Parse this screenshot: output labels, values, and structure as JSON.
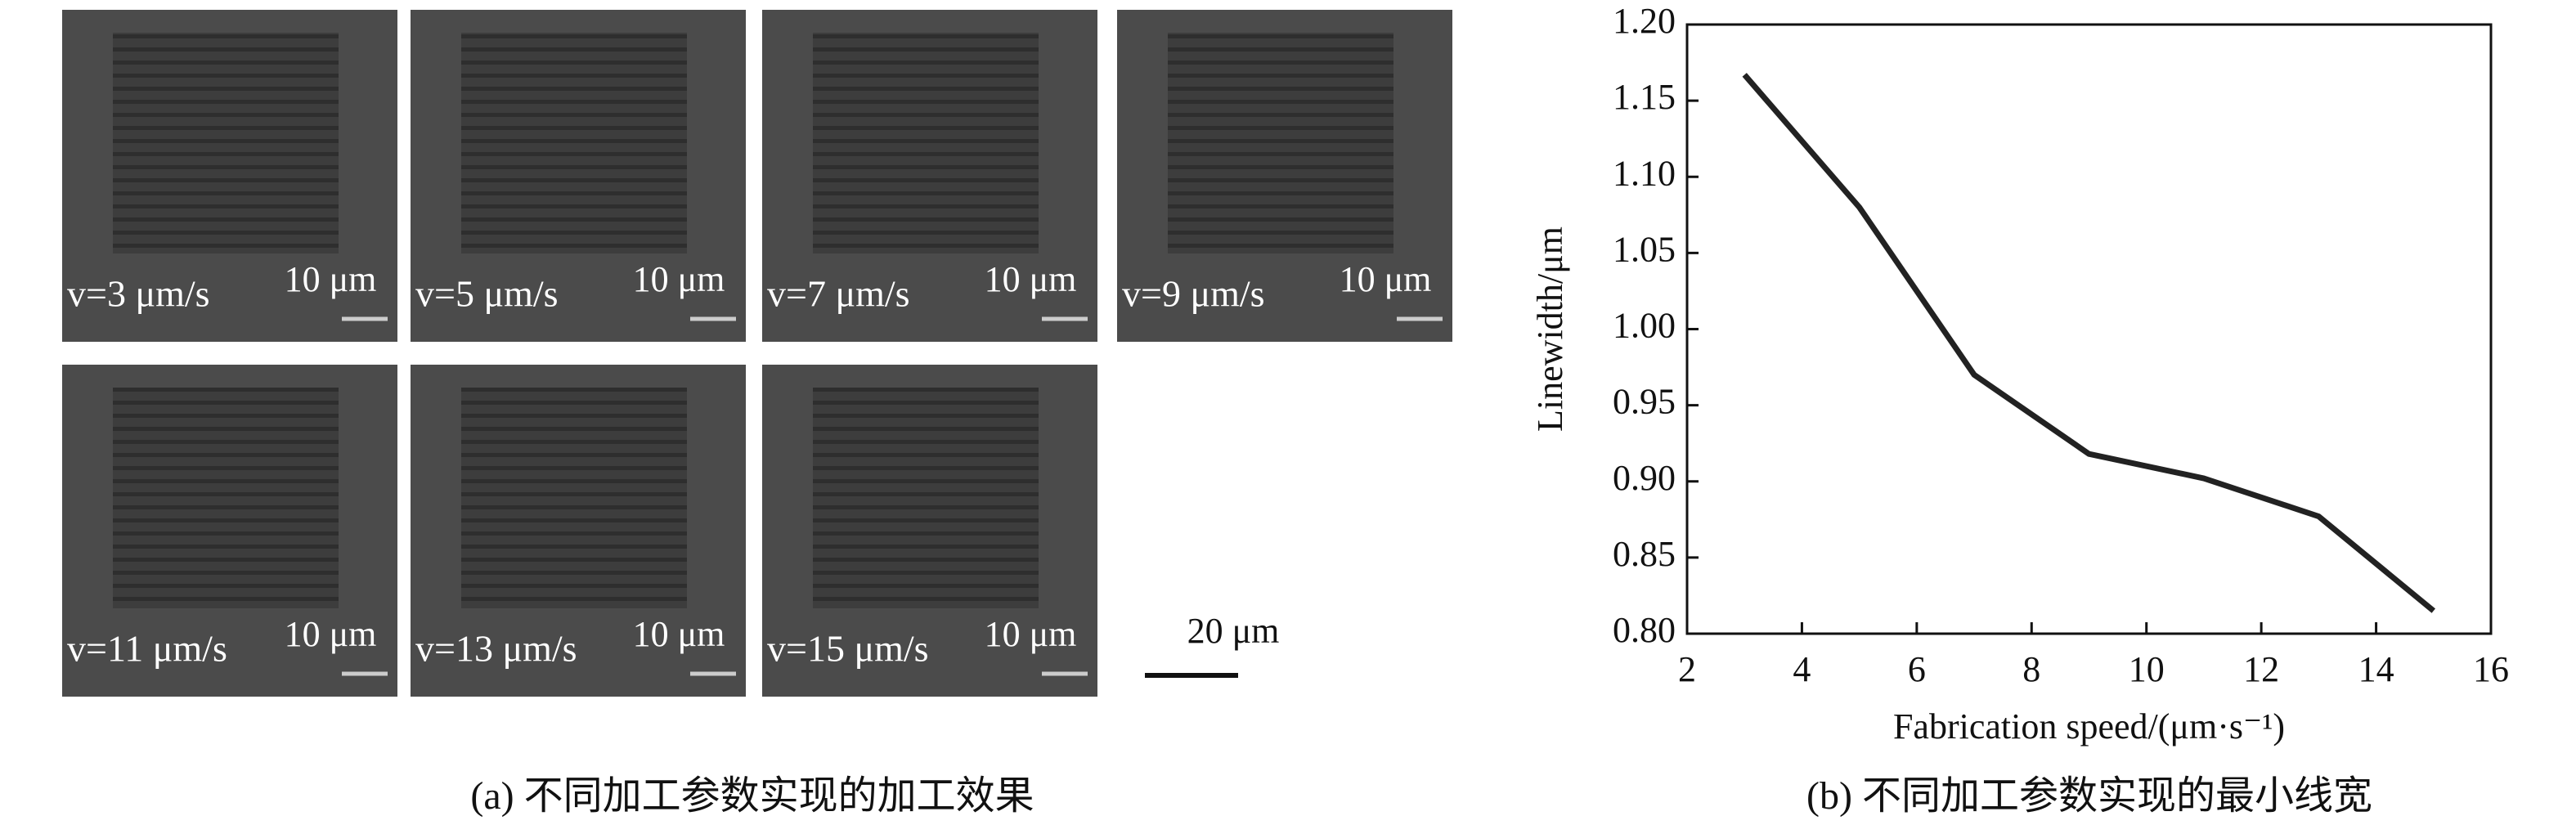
{
  "panel_a": {
    "images": [
      {
        "label": "v=3 μm/s",
        "scale_bar": "10 μm"
      },
      {
        "label": "v=5 μm/s",
        "scale_bar": "10 μm"
      },
      {
        "label": "v=7 μm/s",
        "scale_bar": "10 μm"
      },
      {
        "label": "v=9 μm/s",
        "scale_bar": "10 μm"
      },
      {
        "label": "v=11 μm/s",
        "scale_bar": "10 μm"
      },
      {
        "label": "v=13 μm/s",
        "scale_bar": "10 μm"
      },
      {
        "label": "v=15 μm/s",
        "scale_bar": "10 μm"
      }
    ],
    "overall_scale_bar": "20 μm",
    "caption": "(a) 不同加工参数实现的加工效果"
  },
  "chart_data": {
    "type": "line",
    "caption": "(b) 不同加工参数实现的最小线宽",
    "x_label": "Fabrication speed/(μm·s⁻¹)",
    "y_label": "Linewidth/μm",
    "x": [
      3,
      5,
      7,
      9,
      11,
      13,
      15
    ],
    "series": [
      {
        "name": "Linewidth",
        "color": "#222222",
        "values": [
          1.167,
          1.08,
          0.97,
          0.918,
          0.902,
          0.877,
          0.815
        ]
      }
    ],
    "xlim": [
      2,
      16
    ],
    "xticks": [
      2,
      4,
      6,
      8,
      10,
      12,
      14,
      16
    ],
    "ylim": [
      0.8,
      1.2
    ],
    "yticks": [
      {
        "value": 0.8,
        "label": "0.80"
      },
      {
        "value": 0.85,
        "label": "0.85"
      },
      {
        "value": 0.9,
        "label": "0.90"
      },
      {
        "value": 0.95,
        "label": "0.95"
      },
      {
        "value": 1.0,
        "label": "1.00"
      },
      {
        "value": 1.05,
        "label": "1.05"
      },
      {
        "value": 1.1,
        "label": "1.10"
      },
      {
        "value": 1.15,
        "label": "1.15"
      },
      {
        "value": 1.2,
        "label": "1.20"
      }
    ]
  }
}
